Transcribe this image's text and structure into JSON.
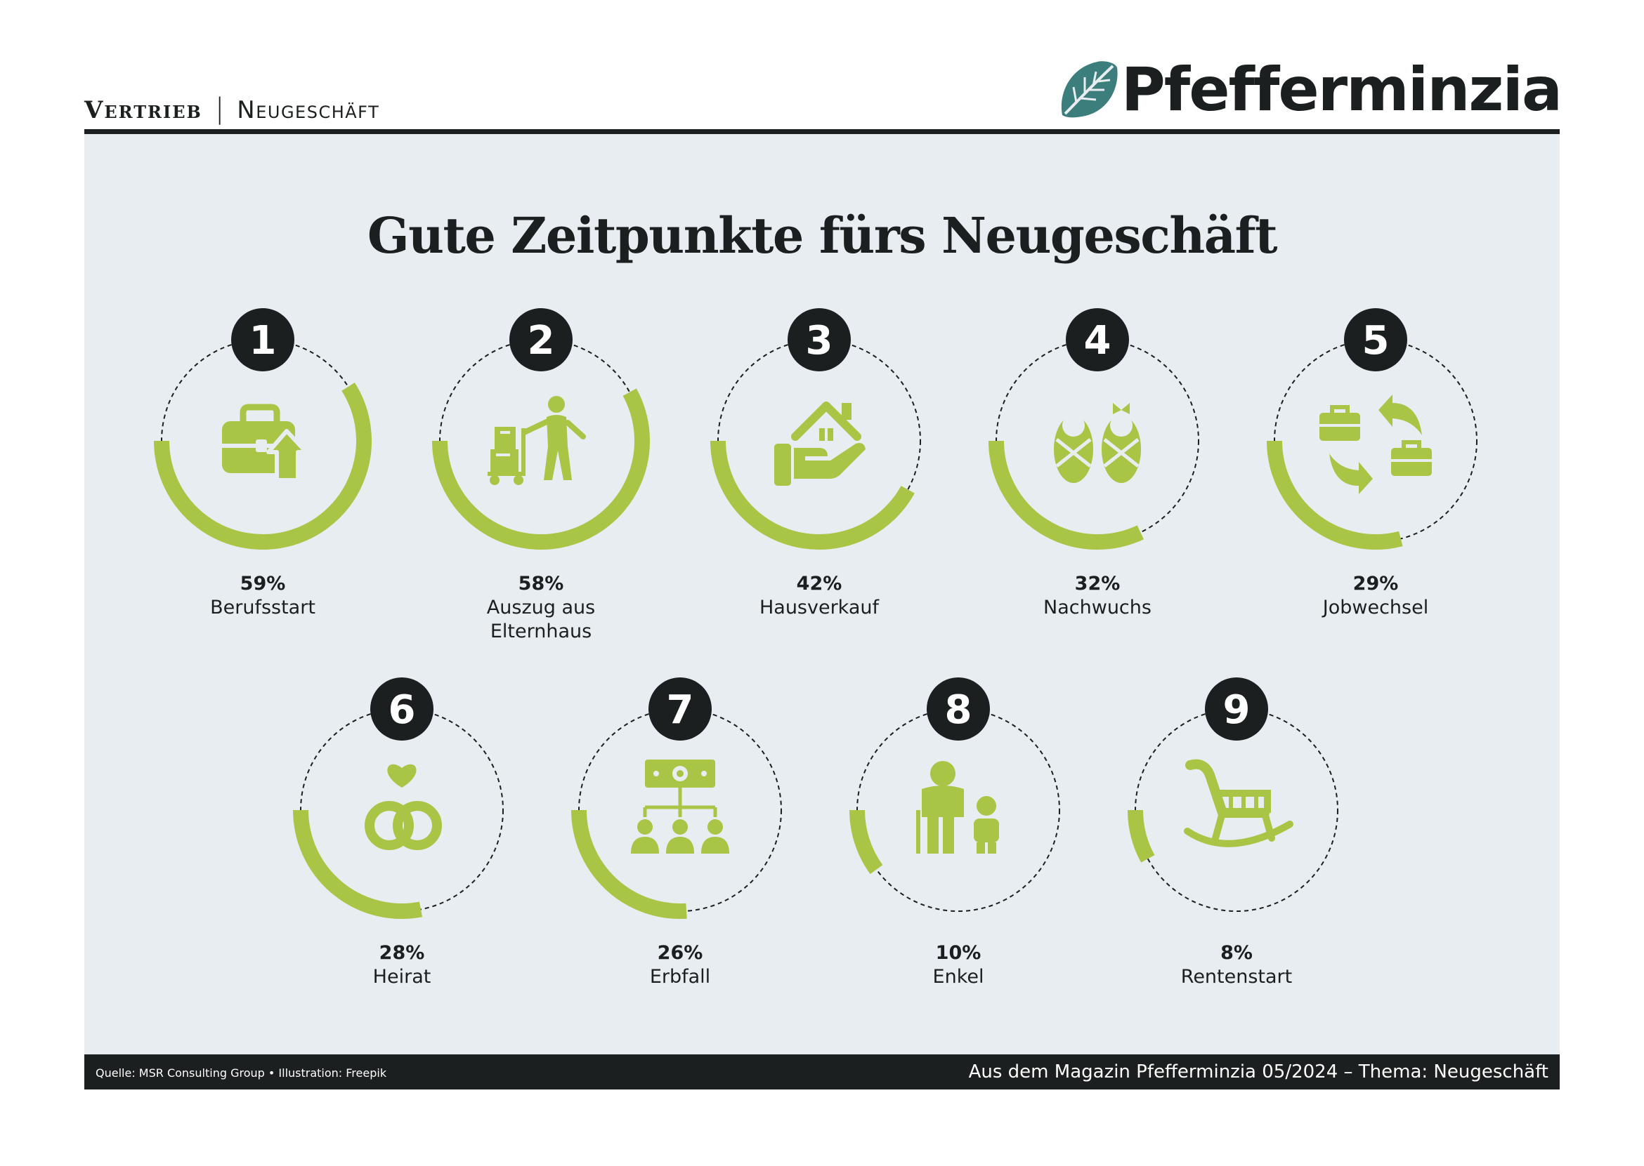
{
  "header": {
    "section": "Vertrieb",
    "separator": "|",
    "subsection": "Neugeschäft",
    "logo_text": "Pfefferminzia"
  },
  "colors": {
    "accent": "#a8c545",
    "dark": "#1c1f1f",
    "panel_bg": "#e8edf1",
    "logo_leaf": "#3b7e7b"
  },
  "chart_data": {
    "type": "radial-progress",
    "title": "Gute Zeitpunkte fürs Neugeschäft",
    "unit": "%",
    "items": [
      {
        "rank": "1",
        "label": "Berufsstart",
        "value": 59,
        "value_label": "59%",
        "icon": "briefcase-arrow-up-icon"
      },
      {
        "rank": "2",
        "label": "Auszug aus Elternhaus",
        "label_lines": [
          "Auszug aus",
          "Elternhaus"
        ],
        "value": 58,
        "value_label": "58%",
        "icon": "moving-person-boxes-icon"
      },
      {
        "rank": "3",
        "label": "Hausverkauf",
        "value": 42,
        "value_label": "42%",
        "icon": "house-in-hand-icon"
      },
      {
        "rank": "4",
        "label": "Nachwuchs",
        "value": 32,
        "value_label": "32%",
        "icon": "swaddled-babies-icon"
      },
      {
        "rank": "5",
        "label": "Jobwechsel",
        "value": 29,
        "value_label": "29%",
        "icon": "briefcase-exchange-icon"
      },
      {
        "rank": "6",
        "label": "Heirat",
        "value": 28,
        "value_label": "28%",
        "icon": "wedding-rings-heart-icon"
      },
      {
        "rank": "7",
        "label": "Erbfall",
        "value": 26,
        "value_label": "26%",
        "icon": "money-inheritance-icon"
      },
      {
        "rank": "8",
        "label": "Enkel",
        "value": 10,
        "value_label": "10%",
        "icon": "grandparent-child-icon"
      },
      {
        "rank": "9",
        "label": "Rentenstart",
        "value": 8,
        "value_label": "8%",
        "icon": "rocking-chair-icon"
      }
    ]
  },
  "footer": {
    "source": "Quelle: MSR Consulting Group • Illustration: Freepik",
    "credit": "Aus dem Magazin Pfefferminzia 05/2024 – Thema: Neugeschäft"
  }
}
